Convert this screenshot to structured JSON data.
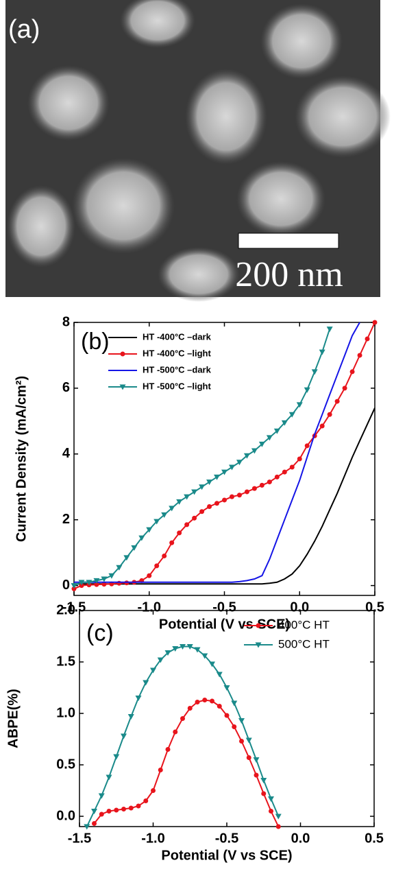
{
  "panel_a": {
    "label": "(a)",
    "scale_bar": "200 nm"
  },
  "chart_data": [
    {
      "type": "line",
      "panel_label": "(b)",
      "xlabel": "Potential (V vs SCE)",
      "ylabel": "Current Density (mA/cm²)",
      "xlim": [
        -1.5,
        0.5
      ],
      "ylim": [
        -0.3,
        8
      ],
      "xticks": [
        -1.5,
        {
          "value": -1,
          "label": "-1.0"
        },
        -0.5,
        {
          "value": 0,
          "label": "0.0"
        },
        0.5
      ],
      "yticks": [
        0,
        2,
        4,
        6,
        8
      ],
      "legend": "upper-left",
      "x": [
        -1.5,
        -1.45,
        -1.4,
        -1.35,
        -1.3,
        -1.25,
        -1.2,
        -1.15,
        -1.1,
        -1.05,
        -1.0,
        -0.95,
        -0.9,
        -0.85,
        -0.8,
        -0.75,
        -0.7,
        -0.65,
        -0.6,
        -0.55,
        -0.5,
        -0.45,
        -0.4,
        -0.35,
        -0.3,
        -0.25,
        -0.2,
        -0.15,
        -0.1,
        -0.05,
        0,
        0.05,
        0.1,
        0.15,
        0.2,
        0.25,
        0.3,
        0.35,
        0.4,
        0.45,
        0.5
      ],
      "series": [
        {
          "name": "HT -400°C –dark",
          "color": "#000000",
          "marker": null,
          "values": [
            0.05,
            0.05,
            0.05,
            0.05,
            0.05,
            0.05,
            0.05,
            0.05,
            0.05,
            0.05,
            0.05,
            0.05,
            0.05,
            0.05,
            0.05,
            0.05,
            0.05,
            0.05,
            0.05,
            0.05,
            0.05,
            0.05,
            0.05,
            0.05,
            0.05,
            0.05,
            0.07,
            0.1,
            0.2,
            0.35,
            0.6,
            0.95,
            1.35,
            1.8,
            2.3,
            2.8,
            3.35,
            3.9,
            4.4,
            4.9,
            5.4
          ]
        },
        {
          "name": "HT -400°C –light",
          "color": "#e8141c",
          "marker": "circle",
          "values": [
            -0.1,
            0,
            0.02,
            0.03,
            0.04,
            0.05,
            0.07,
            0.08,
            0.1,
            0.15,
            0.3,
            0.6,
            0.9,
            1.3,
            1.6,
            1.85,
            2.05,
            2.25,
            2.4,
            2.5,
            2.6,
            2.7,
            2.75,
            2.85,
            2.95,
            3.05,
            3.15,
            3.3,
            3.45,
            3.6,
            3.85,
            4.25,
            4.55,
            4.85,
            5.2,
            5.6,
            6.0,
            6.5,
            7.0,
            7.5,
            8.0
          ]
        },
        {
          "name": "HT -500°C –dark",
          "color": "#1414e6",
          "marker": null,
          "values": [
            0.1,
            0.1,
            0.1,
            0.1,
            0.1,
            0.1,
            0.1,
            0.1,
            0.1,
            0.1,
            0.1,
            0.1,
            0.1,
            0.1,
            0.1,
            0.1,
            0.1,
            0.1,
            0.1,
            0.1,
            0.1,
            0.1,
            0.12,
            0.15,
            0.2,
            0.3,
            0.8,
            1.4,
            2.0,
            2.6,
            3.2,
            3.9,
            4.6,
            5.2,
            5.8,
            6.4,
            7.0,
            7.6,
            8.0,
            null,
            null
          ]
        },
        {
          "name": "HT -500°C –light",
          "color": "#1a8a8a",
          "marker": "triangle-down",
          "values": [
            0,
            0.1,
            0.1,
            0.15,
            0.2,
            0.3,
            0.55,
            0.85,
            1.15,
            1.45,
            1.7,
            1.95,
            2.15,
            2.35,
            2.55,
            2.7,
            2.85,
            3.0,
            3.15,
            3.3,
            3.45,
            3.6,
            3.75,
            3.95,
            4.1,
            4.3,
            4.5,
            4.7,
            4.95,
            5.2,
            5.5,
            5.95,
            6.5,
            7.1,
            7.8,
            null,
            null,
            null,
            null,
            null,
            null
          ]
        }
      ]
    },
    {
      "type": "line",
      "panel_label": "(c)",
      "xlabel": "Potential (V vs SCE)",
      "ylabel": "ABPE(%)",
      "xlim": [
        -1.5,
        0.5
      ],
      "ylim": [
        -0.1,
        2.0
      ],
      "xticks": [
        -1.5,
        {
          "value": -1,
          "label": "-1.0"
        },
        -0.5,
        {
          "value": 0,
          "label": "0.0"
        },
        0.5
      ],
      "yticks": [
        {
          "value": 0,
          "label": "0.0"
        },
        0.5,
        {
          "value": 1,
          "label": "1.0"
        },
        1.5,
        {
          "value": 2,
          "label": "2.0"
        }
      ],
      "legend": "upper-right",
      "x": [
        -1.45,
        -1.4,
        -1.35,
        -1.3,
        -1.25,
        -1.2,
        -1.15,
        -1.1,
        -1.05,
        -1.0,
        -0.95,
        -0.9,
        -0.85,
        -0.8,
        -0.75,
        -0.7,
        -0.65,
        -0.6,
        -0.55,
        -0.5,
        -0.45,
        -0.4,
        -0.35,
        -0.3,
        -0.25,
        -0.2,
        -0.15
      ],
      "series": [
        {
          "name": "400°C HT",
          "color": "#e8141c",
          "marker": "circle",
          "values": [
            null,
            -0.07,
            0.02,
            0.05,
            0.06,
            0.07,
            0.08,
            0.1,
            0.15,
            0.25,
            0.45,
            0.65,
            0.82,
            0.95,
            1.05,
            1.11,
            1.13,
            1.12,
            1.07,
            0.98,
            0.87,
            0.73,
            0.57,
            0.4,
            0.22,
            0.05,
            -0.1
          ]
        },
        {
          "name": "500°C HT",
          "color": "#1a8a8a",
          "marker": "triangle-down",
          "values": [
            -0.1,
            0.05,
            0.2,
            0.38,
            0.58,
            0.78,
            0.97,
            1.15,
            1.3,
            1.42,
            1.52,
            1.59,
            1.63,
            1.65,
            1.65,
            1.62,
            1.56,
            1.48,
            1.38,
            1.25,
            1.1,
            0.93,
            0.74,
            0.55,
            0.35,
            0.17,
            0.0
          ]
        }
      ]
    }
  ]
}
